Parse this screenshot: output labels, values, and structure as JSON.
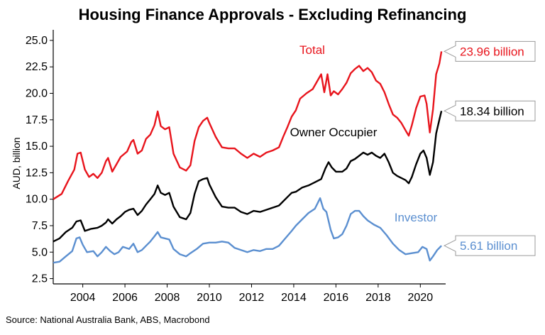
{
  "chart_data": {
    "type": "line",
    "title": "Housing Finance Approvals - Excluding Refinancing",
    "ylabel": "AUD, billion",
    "source": "Source: National Australia Bank, ABS, Macrobond",
    "xlim": [
      2002.6,
      2021.2
    ],
    "ylim": [
      2.0,
      26.0
    ],
    "x_ticks": [
      2004,
      2006,
      2008,
      2010,
      2012,
      2014,
      2016,
      2018,
      2020
    ],
    "x_tick_labels": [
      "2004",
      "2006",
      "2008",
      "2010",
      "2012",
      "2014",
      "2016",
      "2018",
      "2020"
    ],
    "y_ticks": [
      2.5,
      5.0,
      7.5,
      10.0,
      12.5,
      15.0,
      17.5,
      20.0,
      22.5,
      25.0
    ],
    "y_tick_labels": [
      "2.5",
      "5.0",
      "7.5",
      "10.0",
      "12.5",
      "15.0",
      "17.5",
      "20.0",
      "22.5",
      "25.0"
    ],
    "series": [
      {
        "name": "Total",
        "color": "#e8141c",
        "end_label": "23.96 billion",
        "points": [
          [
            2002.6,
            10.0
          ],
          [
            2003.0,
            10.5
          ],
          [
            2003.3,
            11.7
          ],
          [
            2003.6,
            12.8
          ],
          [
            2003.75,
            14.3
          ],
          [
            2003.9,
            14.4
          ],
          [
            2004.1,
            12.8
          ],
          [
            2004.3,
            12.1
          ],
          [
            2004.5,
            12.4
          ],
          [
            2004.7,
            12.0
          ],
          [
            2004.9,
            12.5
          ],
          [
            2005.1,
            13.6
          ],
          [
            2005.2,
            13.9
          ],
          [
            2005.4,
            12.6
          ],
          [
            2005.6,
            13.3
          ],
          [
            2005.8,
            14.0
          ],
          [
            2006.1,
            14.5
          ],
          [
            2006.3,
            15.4
          ],
          [
            2006.4,
            15.6
          ],
          [
            2006.6,
            14.3
          ],
          [
            2006.8,
            14.6
          ],
          [
            2007.0,
            15.7
          ],
          [
            2007.2,
            16.1
          ],
          [
            2007.4,
            17.0
          ],
          [
            2007.55,
            18.3
          ],
          [
            2007.7,
            16.9
          ],
          [
            2007.9,
            16.6
          ],
          [
            2008.1,
            16.8
          ],
          [
            2008.3,
            14.3
          ],
          [
            2008.6,
            13.0
          ],
          [
            2008.9,
            12.7
          ],
          [
            2009.1,
            13.2
          ],
          [
            2009.3,
            15.5
          ],
          [
            2009.5,
            16.8
          ],
          [
            2009.7,
            17.4
          ],
          [
            2009.9,
            17.7
          ],
          [
            2010.0,
            17.2
          ],
          [
            2010.3,
            15.9
          ],
          [
            2010.6,
            14.9
          ],
          [
            2010.9,
            14.8
          ],
          [
            2011.2,
            14.8
          ],
          [
            2011.5,
            14.3
          ],
          [
            2011.8,
            13.9
          ],
          [
            2012.1,
            14.3
          ],
          [
            2012.4,
            14.0
          ],
          [
            2012.7,
            14.4
          ],
          [
            2013.0,
            14.6
          ],
          [
            2013.3,
            14.9
          ],
          [
            2013.5,
            15.9
          ],
          [
            2013.7,
            16.8
          ],
          [
            2013.9,
            17.8
          ],
          [
            2014.1,
            18.4
          ],
          [
            2014.3,
            19.5
          ],
          [
            2014.6,
            20.0
          ],
          [
            2014.9,
            20.4
          ],
          [
            2015.1,
            21.1
          ],
          [
            2015.3,
            21.8
          ],
          [
            2015.45,
            20.1
          ],
          [
            2015.6,
            21.8
          ],
          [
            2015.75,
            19.8
          ],
          [
            2015.9,
            20.2
          ],
          [
            2016.1,
            19.9
          ],
          [
            2016.3,
            20.4
          ],
          [
            2016.5,
            21.0
          ],
          [
            2016.7,
            21.9
          ],
          [
            2016.9,
            22.3
          ],
          [
            2017.1,
            22.6
          ],
          [
            2017.3,
            22.1
          ],
          [
            2017.5,
            22.4
          ],
          [
            2017.7,
            22.0
          ],
          [
            2017.9,
            21.2
          ],
          [
            2018.1,
            20.9
          ],
          [
            2018.3,
            20.1
          ],
          [
            2018.5,
            19.0
          ],
          [
            2018.7,
            18.0
          ],
          [
            2018.9,
            17.7
          ],
          [
            2019.1,
            17.2
          ],
          [
            2019.3,
            16.5
          ],
          [
            2019.45,
            16.0
          ],
          [
            2019.6,
            17.0
          ],
          [
            2019.8,
            18.6
          ],
          [
            2020.0,
            19.7
          ],
          [
            2020.2,
            19.8
          ],
          [
            2020.3,
            19.0
          ],
          [
            2020.45,
            16.3
          ],
          [
            2020.6,
            18.5
          ],
          [
            2020.75,
            21.8
          ],
          [
            2020.9,
            22.8
          ],
          [
            2021.0,
            23.96
          ]
        ]
      },
      {
        "name": "Owner Occupier",
        "color": "#000000",
        "end_label": "18.34 billion",
        "points": [
          [
            2002.6,
            6.0
          ],
          [
            2002.9,
            6.3
          ],
          [
            2003.2,
            6.9
          ],
          [
            2003.5,
            7.3
          ],
          [
            2003.7,
            7.9
          ],
          [
            2003.9,
            8.0
          ],
          [
            2004.1,
            7.0
          ],
          [
            2004.4,
            7.2
          ],
          [
            2004.7,
            7.3
          ],
          [
            2004.9,
            7.5
          ],
          [
            2005.1,
            7.8
          ],
          [
            2005.2,
            8.1
          ],
          [
            2005.4,
            7.7
          ],
          [
            2005.6,
            8.1
          ],
          [
            2005.8,
            8.4
          ],
          [
            2006.0,
            8.8
          ],
          [
            2006.2,
            9.0
          ],
          [
            2006.4,
            9.1
          ],
          [
            2006.6,
            8.5
          ],
          [
            2006.8,
            8.9
          ],
          [
            2007.0,
            9.5
          ],
          [
            2007.2,
            10.0
          ],
          [
            2007.4,
            10.5
          ],
          [
            2007.55,
            11.3
          ],
          [
            2007.7,
            10.6
          ],
          [
            2007.9,
            10.4
          ],
          [
            2008.1,
            10.6
          ],
          [
            2008.3,
            9.3
          ],
          [
            2008.6,
            8.3
          ],
          [
            2008.9,
            8.1
          ],
          [
            2009.1,
            8.7
          ],
          [
            2009.3,
            10.5
          ],
          [
            2009.5,
            11.7
          ],
          [
            2009.7,
            11.9
          ],
          [
            2009.9,
            12.0
          ],
          [
            2010.0,
            11.4
          ],
          [
            2010.3,
            10.2
          ],
          [
            2010.6,
            9.3
          ],
          [
            2010.9,
            9.2
          ],
          [
            2011.2,
            9.2
          ],
          [
            2011.5,
            8.8
          ],
          [
            2011.8,
            8.6
          ],
          [
            2012.1,
            8.9
          ],
          [
            2012.4,
            8.8
          ],
          [
            2012.7,
            9.0
          ],
          [
            2013.0,
            9.2
          ],
          [
            2013.3,
            9.4
          ],
          [
            2013.5,
            9.8
          ],
          [
            2013.7,
            10.2
          ],
          [
            2013.9,
            10.6
          ],
          [
            2014.1,
            10.7
          ],
          [
            2014.4,
            11.1
          ],
          [
            2014.7,
            11.3
          ],
          [
            2015.0,
            11.6
          ],
          [
            2015.3,
            11.9
          ],
          [
            2015.5,
            12.9
          ],
          [
            2015.65,
            13.5
          ],
          [
            2015.8,
            13.0
          ],
          [
            2016.0,
            12.6
          ],
          [
            2016.3,
            12.6
          ],
          [
            2016.5,
            12.9
          ],
          [
            2016.7,
            13.6
          ],
          [
            2016.9,
            13.8
          ],
          [
            2017.1,
            14.1
          ],
          [
            2017.3,
            14.4
          ],
          [
            2017.5,
            14.2
          ],
          [
            2017.7,
            14.4
          ],
          [
            2017.9,
            14.1
          ],
          [
            2018.1,
            13.9
          ],
          [
            2018.3,
            14.3
          ],
          [
            2018.5,
            13.5
          ],
          [
            2018.7,
            12.5
          ],
          [
            2018.9,
            12.2
          ],
          [
            2019.1,
            12.0
          ],
          [
            2019.3,
            11.8
          ],
          [
            2019.45,
            11.5
          ],
          [
            2019.6,
            12.1
          ],
          [
            2019.8,
            13.3
          ],
          [
            2020.0,
            14.3
          ],
          [
            2020.15,
            14.6
          ],
          [
            2020.3,
            13.9
          ],
          [
            2020.45,
            12.3
          ],
          [
            2020.6,
            13.5
          ],
          [
            2020.75,
            16.2
          ],
          [
            2020.9,
            17.5
          ],
          [
            2021.0,
            18.34
          ]
        ]
      },
      {
        "name": "Investor",
        "color": "#5b8fd0",
        "end_label": "5.61 billion",
        "points": [
          [
            2002.6,
            4.0
          ],
          [
            2002.9,
            4.1
          ],
          [
            2003.2,
            4.6
          ],
          [
            2003.5,
            5.1
          ],
          [
            2003.7,
            6.3
          ],
          [
            2003.85,
            6.4
          ],
          [
            2004.0,
            5.7
          ],
          [
            2004.2,
            5.0
          ],
          [
            2004.5,
            5.1
          ],
          [
            2004.7,
            4.6
          ],
          [
            2004.9,
            5.0
          ],
          [
            2005.1,
            5.5
          ],
          [
            2005.3,
            5.1
          ],
          [
            2005.5,
            4.8
          ],
          [
            2005.7,
            5.0
          ],
          [
            2005.9,
            5.5
          ],
          [
            2006.2,
            5.3
          ],
          [
            2006.4,
            5.8
          ],
          [
            2006.6,
            5.0
          ],
          [
            2006.8,
            5.2
          ],
          [
            2007.0,
            5.6
          ],
          [
            2007.2,
            6.0
          ],
          [
            2007.4,
            6.5
          ],
          [
            2007.55,
            6.9
          ],
          [
            2007.7,
            6.4
          ],
          [
            2007.9,
            6.3
          ],
          [
            2008.1,
            6.2
          ],
          [
            2008.3,
            5.3
          ],
          [
            2008.6,
            4.8
          ],
          [
            2008.9,
            4.6
          ],
          [
            2009.1,
            4.9
          ],
          [
            2009.4,
            5.3
          ],
          [
            2009.7,
            5.8
          ],
          [
            2010.0,
            5.9
          ],
          [
            2010.3,
            5.9
          ],
          [
            2010.6,
            6.0
          ],
          [
            2010.9,
            5.9
          ],
          [
            2011.2,
            5.4
          ],
          [
            2011.5,
            5.2
          ],
          [
            2011.8,
            5.0
          ],
          [
            2012.1,
            5.2
          ],
          [
            2012.4,
            5.1
          ],
          [
            2012.7,
            5.3
          ],
          [
            2013.0,
            5.3
          ],
          [
            2013.3,
            5.6
          ],
          [
            2013.6,
            6.3
          ],
          [
            2013.9,
            7.0
          ],
          [
            2014.1,
            7.5
          ],
          [
            2014.4,
            8.1
          ],
          [
            2014.7,
            8.7
          ],
          [
            2015.0,
            9.1
          ],
          [
            2015.25,
            10.1
          ],
          [
            2015.4,
            9.1
          ],
          [
            2015.55,
            8.8
          ],
          [
            2015.75,
            7.1
          ],
          [
            2015.9,
            6.3
          ],
          [
            2016.1,
            6.4
          ],
          [
            2016.3,
            6.7
          ],
          [
            2016.5,
            7.5
          ],
          [
            2016.7,
            8.6
          ],
          [
            2016.9,
            8.9
          ],
          [
            2017.1,
            8.9
          ],
          [
            2017.3,
            8.4
          ],
          [
            2017.5,
            8.0
          ],
          [
            2017.8,
            7.6
          ],
          [
            2018.1,
            7.3
          ],
          [
            2018.4,
            6.6
          ],
          [
            2018.7,
            5.8
          ],
          [
            2019.0,
            5.2
          ],
          [
            2019.3,
            4.8
          ],
          [
            2019.6,
            4.9
          ],
          [
            2019.9,
            5.0
          ],
          [
            2020.1,
            5.5
          ],
          [
            2020.3,
            5.3
          ],
          [
            2020.45,
            4.2
          ],
          [
            2020.6,
            4.6
          ],
          [
            2020.8,
            5.2
          ],
          [
            2020.9,
            5.4
          ],
          [
            2021.0,
            5.61
          ]
        ]
      }
    ],
    "legend_labels": [
      {
        "text": "Total",
        "color": "#e8141c"
      },
      {
        "text": "Owner Occupier",
        "color": "#000000"
      },
      {
        "text": "Investor",
        "color": "#5b8fd0"
      }
    ],
    "grid": false
  }
}
